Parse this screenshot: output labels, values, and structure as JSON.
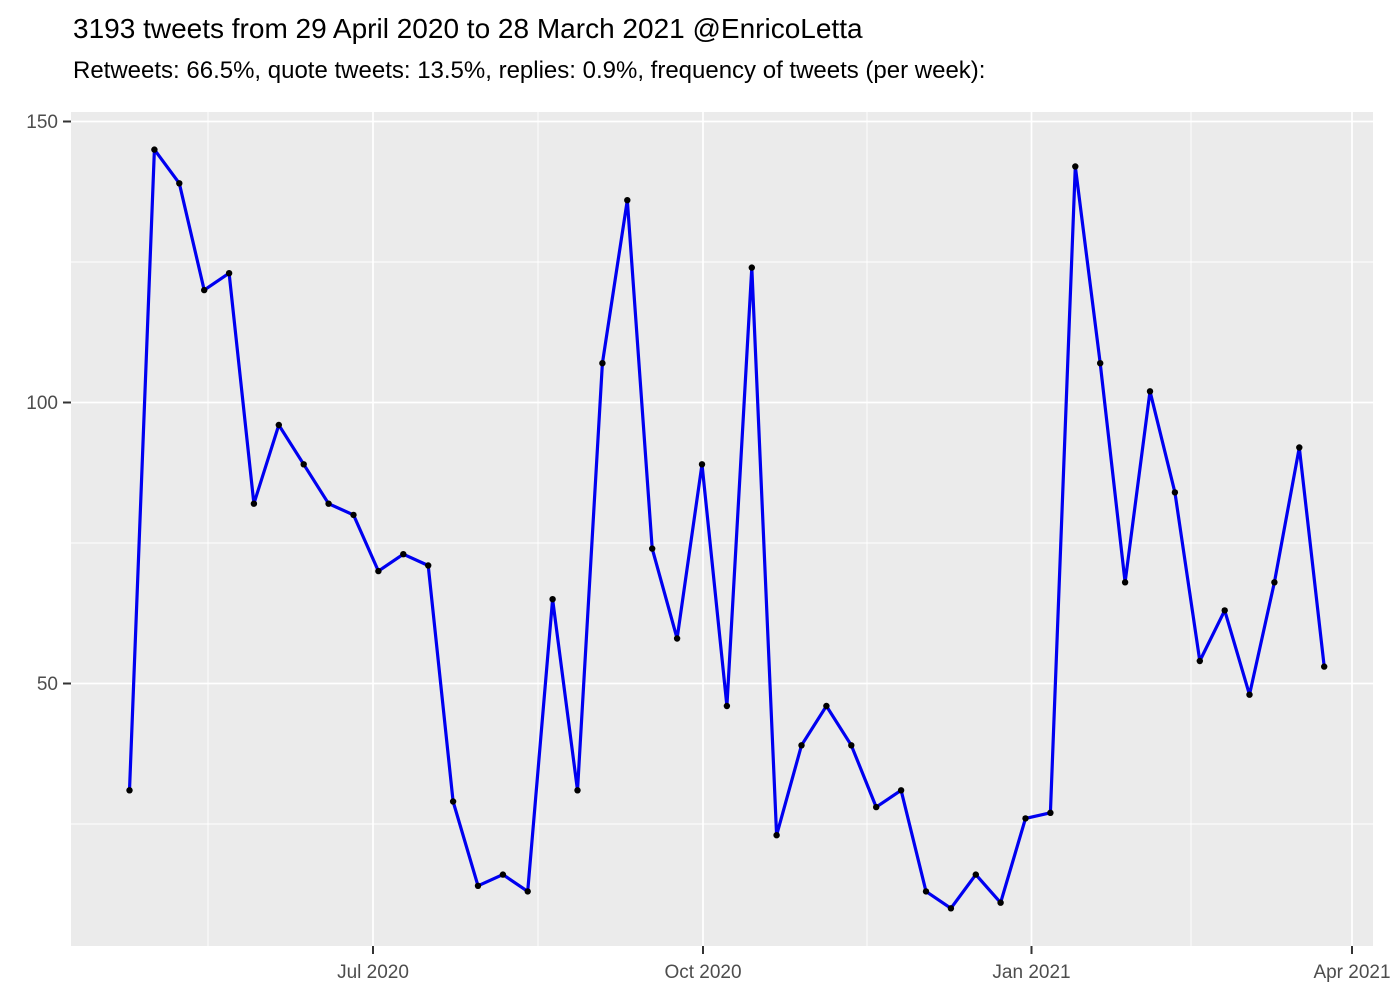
{
  "header": {
    "title": "3193 tweets from 29 April 2020 to 28 March 2021 @EnricoLetta",
    "subtitle": "Retweets: 66.5%, quote tweets: 13.5%, replies: 0.9%, frequency of tweets (per week):"
  },
  "chart_data": {
    "type": "line",
    "title": "3193 tweets from 29 April 2020 to 28 March 2021 @EnricoLetta",
    "subtitle": "Retweets: 66.5%, quote tweets: 13.5%, replies: 0.9%, frequency of tweets (per week):",
    "xlabel": "",
    "ylabel": "",
    "x": [
      "2020-04-26",
      "2020-05-03",
      "2020-05-10",
      "2020-05-17",
      "2020-05-24",
      "2020-05-31",
      "2020-06-07",
      "2020-06-14",
      "2020-06-21",
      "2020-06-28",
      "2020-07-05",
      "2020-07-12",
      "2020-07-19",
      "2020-07-26",
      "2020-08-02",
      "2020-08-09",
      "2020-08-16",
      "2020-08-23",
      "2020-08-30",
      "2020-09-06",
      "2020-09-13",
      "2020-09-20",
      "2020-09-27",
      "2020-10-04",
      "2020-10-11",
      "2020-10-18",
      "2020-10-25",
      "2020-11-01",
      "2020-11-08",
      "2020-11-15",
      "2020-11-22",
      "2020-11-29",
      "2020-12-06",
      "2020-12-13",
      "2020-12-20",
      "2020-12-27",
      "2021-01-03",
      "2021-01-10",
      "2021-01-17",
      "2021-01-24",
      "2021-01-31",
      "2021-02-07",
      "2021-02-14",
      "2021-02-21",
      "2021-02-28",
      "2021-03-07",
      "2021-03-14",
      "2021-03-21",
      "2021-03-28"
    ],
    "series": [
      {
        "name": "tweets per week",
        "values": [
          31,
          145,
          139,
          120,
          123,
          82,
          96,
          89,
          82,
          80,
          70,
          73,
          71,
          29,
          14,
          16,
          13,
          65,
          31,
          107,
          136,
          74,
          58,
          89,
          46,
          124,
          23,
          39,
          46,
          39,
          28,
          31,
          13,
          10,
          16,
          11,
          26,
          27,
          142,
          107,
          68,
          102,
          84,
          54,
          63,
          48,
          68,
          92,
          53
        ]
      }
    ],
    "total_tweets": 3193,
    "x_tick_labels": [
      "Jul 2020",
      "Oct 2020",
      "Jan 2021",
      "Apr 2021"
    ],
    "y_tick_labels": [
      "50",
      "100",
      "150"
    ],
    "y_major_values": [
      50,
      100,
      150
    ],
    "y_minor_values": [
      25,
      75,
      125
    ],
    "ylim": [
      0,
      150
    ],
    "grid": "on",
    "legend": "none",
    "colors": {
      "line": "#0000F0",
      "point": "#000000",
      "panel_bg": "#EBEBEB",
      "gridline": "#FFFFFF",
      "axis_text": "#4D4D4D",
      "tick_mark": "#333333",
      "title_text": "#000000"
    }
  }
}
